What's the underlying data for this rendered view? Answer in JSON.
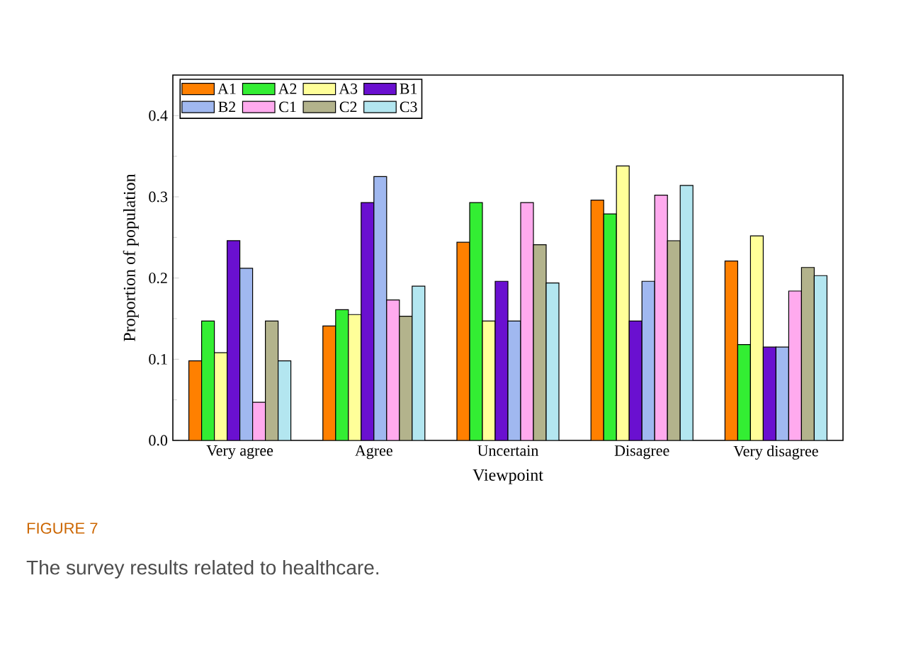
{
  "chart_data": {
    "type": "bar",
    "xlabel": "Viewpoint",
    "ylabel": "Proportion of population",
    "categories": [
      "Very agree",
      "Agree",
      "Uncertain",
      "Disagree",
      "Very disagree"
    ],
    "series": [
      {
        "name": "A1",
        "color": "#ff8000",
        "values": [
          0.098,
          0.141,
          0.244,
          0.296,
          0.221
        ]
      },
      {
        "name": "A2",
        "color": "#33ee33",
        "values": [
          0.147,
          0.161,
          0.293,
          0.279,
          0.118
        ]
      },
      {
        "name": "A3",
        "color": "#ffff99",
        "values": [
          0.108,
          0.155,
          0.147,
          0.338,
          0.252
        ]
      },
      {
        "name": "B1",
        "color": "#6a10d0",
        "values": [
          0.246,
          0.293,
          0.196,
          0.147,
          0.115
        ]
      },
      {
        "name": "B2",
        "color": "#a0b8f0",
        "values": [
          0.212,
          0.325,
          0.147,
          0.196,
          0.115
        ]
      },
      {
        "name": "C1",
        "color": "#ffaaee",
        "values": [
          0.047,
          0.173,
          0.293,
          0.302,
          0.184
        ]
      },
      {
        "name": "C2",
        "color": "#b3b38c",
        "values": [
          0.147,
          0.153,
          0.241,
          0.246,
          0.213
        ]
      },
      {
        "name": "C3",
        "color": "#b3e6f0",
        "values": [
          0.098,
          0.19,
          0.194,
          0.314,
          0.203
        ]
      }
    ],
    "ylim": [
      0,
      0.45
    ],
    "yticks": [
      {
        "value": 0,
        "label": "0.0"
      },
      0.1,
      0.2,
      0.3,
      0.4
    ],
    "legend": "top left",
    "annotations": [
      "FIGURE 7",
      "The survey results related to healthcare."
    ]
  }
}
